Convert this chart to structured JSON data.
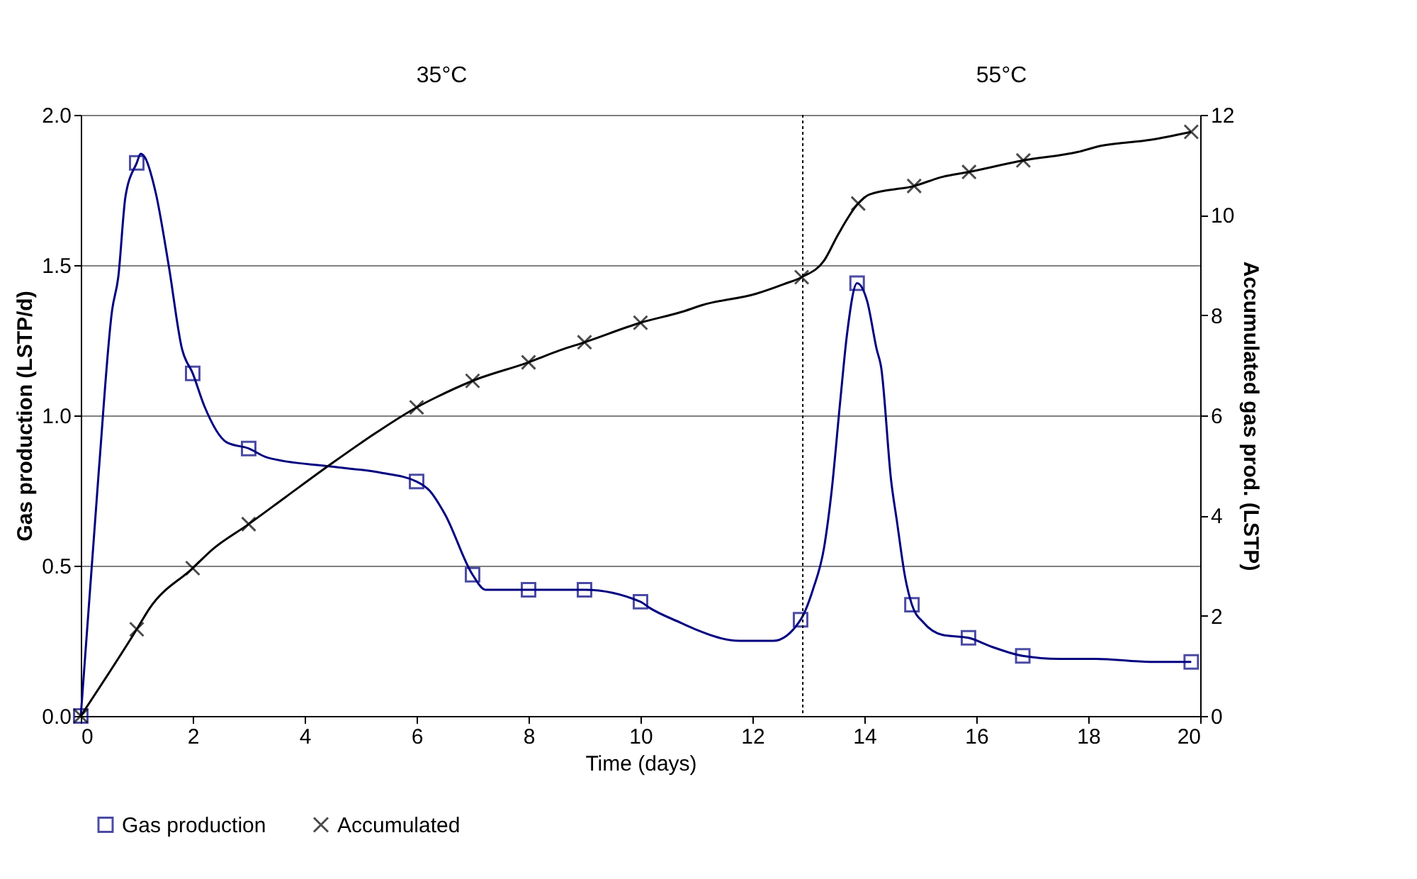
{
  "chart_data": {
    "type": "line",
    "xlabel": "Time (days)",
    "ylabel": "Gas production (LSTP/d)",
    "y2label": "Accumulated gas prod. (LSTP)",
    "xlim": [
      0,
      20
    ],
    "xticks": [
      0,
      2,
      4,
      6,
      8,
      10,
      12,
      14,
      16,
      18,
      20
    ],
    "ylim": [
      0,
      2
    ],
    "yticks": [
      {
        "value": 0,
        "label": "0.0"
      },
      {
        "value": 0.5,
        "label": "0.5"
      },
      {
        "value": 1,
        "label": "1.0"
      },
      {
        "value": 1.5,
        "label": "1.5"
      },
      {
        "value": 2,
        "label": "2.0"
      }
    ],
    "y2lim": [
      0,
      12
    ],
    "y2ticks": [
      0,
      2,
      4,
      6,
      8,
      10,
      12
    ],
    "grid": "y",
    "legend": "bottom",
    "ref_lines": [
      {
        "axis": "x",
        "value": 12.9,
        "label": null,
        "color": "#000000",
        "line_style": "dotted"
      }
    ],
    "annotations": [
      "35°C",
      "55°C"
    ],
    "series": [
      {
        "color": "#000080",
        "marker": "none",
        "x": [
          0,
          0.32,
          0.56,
          0.67,
          0.8,
          1,
          1.07,
          1.14,
          1.34,
          1.57,
          1.81,
          2,
          2.21,
          2.61,
          3,
          3.33,
          4.46,
          5.34,
          6,
          6.23,
          6.51,
          7,
          7.23,
          8,
          9,
          10,
          10.16,
          10.72,
          10.96,
          11.77,
          12.37,
          12.86,
          13.08,
          13.28,
          13.41,
          13.57,
          13.69,
          13.87,
          14.05,
          14.22,
          14.3,
          14.48,
          14.58,
          14.73,
          14.85,
          15.06,
          15.39,
          15.86,
          16.28,
          16.83,
          17.49,
          18.14,
          19.11,
          19.84
        ],
        "values": [
          0,
          0.81,
          1.35,
          1.46,
          1.73,
          1.84,
          1.87,
          1.86,
          1.74,
          1.5,
          1.22,
          1.14,
          1.03,
          0.91,
          0.89,
          0.86,
          0.83,
          0.81,
          0.78,
          0.75,
          0.67,
          0.47,
          0.42,
          0.42,
          0.42,
          0.38,
          0.36,
          0.31,
          0.29,
          0.25,
          0.25,
          0.32,
          0.42,
          0.56,
          0.74,
          1.05,
          1.27,
          1.44,
          1.38,
          1.22,
          1.16,
          0.78,
          0.65,
          0.46,
          0.37,
          0.31,
          0.27,
          0.26,
          0.23,
          0.2,
          0.19,
          0.19,
          0.18,
          0.18
        ]
      },
      {
        "type": "scatter",
        "name": "Gas production",
        "color": "#000080",
        "marker": "square",
        "x": [
          0,
          1,
          2,
          3,
          6,
          7,
          8,
          9,
          10,
          12.86,
          13.87,
          14.85,
          15.86,
          16.83,
          19.84
        ],
        "values": [
          0,
          1.84,
          1.14,
          0.89,
          0.78,
          0.47,
          0.42,
          0.42,
          0.38,
          0.32,
          1.44,
          0.37,
          0.26,
          0.2,
          0.18
        ]
      },
      {
        "axis": "y2",
        "color": "#000000",
        "marker": "none",
        "x": [
          0,
          1,
          1.23,
          2,
          2.36,
          3,
          3.66,
          4.47,
          5.27,
          6,
          6.33,
          7,
          8,
          8.56,
          9,
          10,
          10.78,
          11.1,
          12.07,
          12.56,
          12.88,
          13.28,
          13.53,
          13.89,
          14.09,
          14.89,
          15.39,
          15.87,
          16.84,
          17.82,
          18.22,
          19.11,
          19.84
        ],
        "values": [
          0,
          1.73,
          2.15,
          2.95,
          3.33,
          3.83,
          4.37,
          5.03,
          5.65,
          6.16,
          6.35,
          6.69,
          7.06,
          7.3,
          7.46,
          7.85,
          8.08,
          8.2,
          8.43,
          8.62,
          8.76,
          9.09,
          9.61,
          10.23,
          10.41,
          10.58,
          10.76,
          10.86,
          11.09,
          11.26,
          11.38,
          11.5,
          11.66
        ]
      },
      {
        "type": "scatter",
        "name": "Accumulated",
        "axis": "y2",
        "color": "#000000",
        "marker": "cross",
        "x": [
          0,
          1,
          2,
          3,
          6,
          7,
          8,
          9,
          10,
          12.88,
          13.89,
          14.89,
          15.87,
          16.84,
          19.84
        ],
        "values": [
          0,
          1.73,
          2.95,
          3.83,
          6.16,
          6.69,
          7.06,
          7.46,
          7.85,
          8.76,
          10.23,
          10.58,
          10.86,
          11.09,
          11.66
        ]
      }
    ]
  }
}
